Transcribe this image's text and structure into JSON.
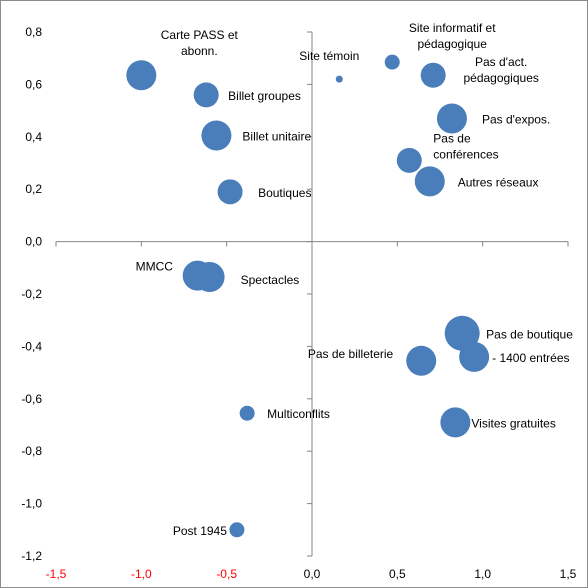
{
  "chart_data": {
    "type": "scatter",
    "title": "",
    "xlabel": "",
    "ylabel": "",
    "xlim": [
      -1.5,
      1.5
    ],
    "ylim": [
      -1.2,
      0.8
    ],
    "x_ticks": [
      "-1,5",
      "-1,0",
      "-0,5",
      "0,0",
      "0,5",
      "1,0",
      "1,5"
    ],
    "y_ticks": [
      "0,8",
      "0,6",
      "0,4",
      "0,2",
      "0,0",
      "-0,2",
      "-0,4",
      "-0,6",
      "-0,8",
      "-1,0",
      "-1,2"
    ],
    "grid": false,
    "legend": "none",
    "x_tick_color": "#ff0000",
    "y_tick_color": "#000000",
    "marker_color": "#4a7ebb",
    "points": [
      {
        "label": [
          "Carte PASS et",
          "abonn."
        ],
        "x": -1.0,
        "y": 0.635,
        "size": "large"
      },
      {
        "label": [
          "Billet groupes"
        ],
        "x": -0.62,
        "y": 0.56,
        "size": "medium"
      },
      {
        "label": [
          "Billet unitaire"
        ],
        "x": -0.56,
        "y": 0.405,
        "size": "large"
      },
      {
        "label": [
          "Boutiques"
        ],
        "x": -0.48,
        "y": 0.19,
        "size": "medium"
      },
      {
        "label": [
          "Site témoin"
        ],
        "x": 0.16,
        "y": 0.62,
        "size": "tiny"
      },
      {
        "label": [
          "Site informatif et",
          "pédagogique"
        ],
        "x": 0.47,
        "y": 0.685,
        "size": "small"
      },
      {
        "label": [
          "Pas d'act.",
          "pédagogiques"
        ],
        "x": 0.71,
        "y": 0.635,
        "size": "medium"
      },
      {
        "label": [
          "Pas d'expos."
        ],
        "x": 0.82,
        "y": 0.47,
        "size": "large"
      },
      {
        "label": [
          "Pas de",
          "conférences"
        ],
        "x": 0.57,
        "y": 0.31,
        "size": "medium"
      },
      {
        "label": [
          "Autres réseaux"
        ],
        "x": 0.69,
        "y": 0.23,
        "size": "large"
      },
      {
        "label": [
          "MMCC"
        ],
        "x": -0.67,
        "y": -0.13,
        "size": "large"
      },
      {
        "label": [
          "Spectacles"
        ],
        "x": -0.6,
        "y": -0.135,
        "size": "large"
      },
      {
        "label": [
          "Pas de boutique"
        ],
        "x": 0.88,
        "y": -0.35,
        "size": "xlarge"
      },
      {
        "label": [
          "- 1400 entrées"
        ],
        "x": 0.95,
        "y": -0.44,
        "size": "large"
      },
      {
        "label": [
          "Pas de billeterie"
        ],
        "x": 0.64,
        "y": -0.455,
        "size": "large"
      },
      {
        "label": [
          "Multiconflits"
        ],
        "x": -0.38,
        "y": -0.655,
        "size": "small"
      },
      {
        "label": [
          "Visites gratuites"
        ],
        "x": 0.84,
        "y": -0.69,
        "size": "large"
      },
      {
        "label": [
          "Post 1945"
        ],
        "x": -0.44,
        "y": -1.1,
        "size": "small"
      }
    ]
  }
}
